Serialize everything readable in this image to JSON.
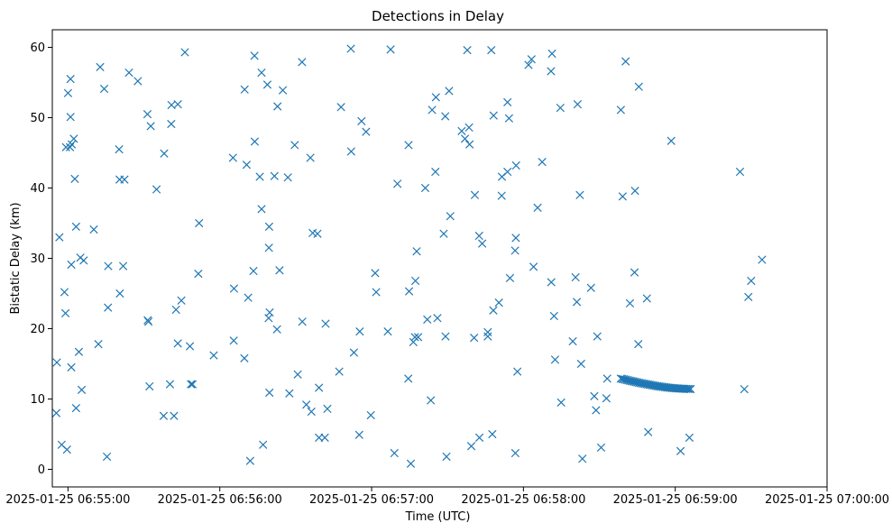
{
  "chart_data": {
    "type": "scatter",
    "title": "Detections in Delay",
    "xlabel": "Time (UTC)",
    "ylabel": "Bistatic Delay (km)",
    "x_unit": "seconds since 2025-01-25 06:55:00 UTC",
    "xlim": [
      -6.2,
      300
    ],
    "ylim": [
      -2.5,
      62.5
    ],
    "x_ticks": [
      {
        "value": 0,
        "label": "2025-01-25 06:55:00"
      },
      {
        "value": 60,
        "label": "2025-01-25 06:56:00"
      },
      {
        "value": 120,
        "label": "2025-01-25 06:57:00"
      },
      {
        "value": 180,
        "label": "2025-01-25 06:58:00"
      },
      {
        "value": 240,
        "label": "2025-01-25 06:59:00"
      },
      {
        "value": 300,
        "label": "2025-01-25 07:00:00"
      }
    ],
    "y_ticks": [
      {
        "value": 0,
        "label": "0"
      },
      {
        "value": 10,
        "label": "10"
      },
      {
        "value": 20,
        "label": "20"
      },
      {
        "value": 30,
        "label": "30"
      },
      {
        "value": 40,
        "label": "40"
      },
      {
        "value": 50,
        "label": "50"
      },
      {
        "value": 60,
        "label": "60"
      }
    ],
    "grid": false,
    "marker": "x",
    "colors": {
      "series": "#1f77b4"
    },
    "points": [
      [
        -4.4,
        15.2
      ],
      [
        -4.6,
        8.0
      ],
      [
        -3.4,
        33.0
      ],
      [
        -2.5,
        3.5
      ],
      [
        -1.4,
        25.2
      ],
      [
        -1.0,
        22.2
      ],
      [
        -0.8,
        45.8
      ],
      [
        -0.4,
        2.8
      ],
      [
        0.0,
        53.5
      ],
      [
        1.0,
        55.5
      ],
      [
        1.0,
        50.1
      ],
      [
        0.8,
        45.8
      ],
      [
        1.5,
        46.2
      ],
      [
        1.3,
        29.1
      ],
      [
        1.3,
        14.5
      ],
      [
        2.3,
        47.0
      ],
      [
        2.7,
        41.3
      ],
      [
        3.2,
        34.5
      ],
      [
        3.2,
        8.7
      ],
      [
        4.3,
        16.7
      ],
      [
        4.9,
        30.1
      ],
      [
        5.4,
        11.3
      ],
      [
        6.2,
        29.7
      ],
      [
        10.2,
        34.1
      ],
      [
        12.0,
        17.8
      ],
      [
        12.7,
        57.2
      ],
      [
        14.3,
        54.1
      ],
      [
        15.4,
        1.8
      ],
      [
        15.9,
        28.9
      ],
      [
        15.8,
        23.0
      ],
      [
        20.2,
        45.5
      ],
      [
        20.4,
        41.2
      ],
      [
        20.5,
        25.0
      ],
      [
        21.8,
        28.9
      ],
      [
        22.3,
        41.2
      ],
      [
        24.1,
        56.4
      ],
      [
        27.6,
        55.2
      ],
      [
        31.4,
        50.5
      ],
      [
        31.5,
        21.2
      ],
      [
        31.8,
        21.0
      ],
      [
        32.2,
        11.8
      ],
      [
        32.7,
        48.8
      ],
      [
        35.0,
        39.8
      ],
      [
        37.8,
        7.6
      ],
      [
        38.0,
        44.9
      ],
      [
        40.3,
        12.1
      ],
      [
        40.8,
        49.1
      ],
      [
        40.9,
        51.8
      ],
      [
        41.9,
        7.6
      ],
      [
        42.7,
        22.7
      ],
      [
        43.4,
        51.9
      ],
      [
        43.4,
        17.9
      ],
      [
        44.8,
        24.0
      ],
      [
        46.2,
        59.3
      ],
      [
        48.2,
        17.5
      ],
      [
        48.6,
        12.1
      ],
      [
        49.2,
        12.1
      ],
      [
        51.5,
        27.8
      ],
      [
        51.8,
        35.0
      ],
      [
        57.6,
        16.2
      ],
      [
        65.2,
        44.3
      ],
      [
        65.5,
        18.3
      ],
      [
        65.6,
        25.7
      ],
      [
        69.8,
        54.0
      ],
      [
        69.7,
        15.8
      ],
      [
        70.6,
        43.3
      ],
      [
        71.2,
        24.4
      ],
      [
        72.0,
        1.2
      ],
      [
        73.7,
        58.8
      ],
      [
        73.3,
        28.2
      ],
      [
        73.8,
        46.6
      ],
      [
        75.8,
        41.6
      ],
      [
        76.5,
        37.0
      ],
      [
        76.5,
        56.4
      ],
      [
        77.1,
        3.5
      ],
      [
        78.8,
        54.7
      ],
      [
        79.5,
        34.5
      ],
      [
        79.4,
        31.5
      ],
      [
        79.3,
        21.5
      ],
      [
        79.7,
        22.3
      ],
      [
        79.6,
        10.9
      ],
      [
        81.6,
        41.7
      ],
      [
        82.6,
        19.9
      ],
      [
        82.8,
        51.6
      ],
      [
        83.6,
        28.3
      ],
      [
        84.9,
        53.9
      ],
      [
        86.9,
        41.5
      ],
      [
        87.5,
        10.8
      ],
      [
        89.6,
        46.1
      ],
      [
        90.8,
        13.5
      ],
      [
        92.5,
        57.9
      ],
      [
        92.6,
        21.0
      ],
      [
        94.2,
        9.2
      ],
      [
        95.8,
        44.3
      ],
      [
        96.2,
        8.2
      ],
      [
        96.7,
        33.6
      ],
      [
        98.6,
        33.5
      ],
      [
        99.2,
        11.6
      ],
      [
        99.2,
        4.5
      ],
      [
        101.5,
        4.5
      ],
      [
        101.8,
        20.7
      ],
      [
        102.5,
        8.6
      ],
      [
        107.2,
        13.9
      ],
      [
        107.9,
        51.5
      ],
      [
        111.8,
        59.8
      ],
      [
        111.9,
        45.2
      ],
      [
        113.0,
        16.6
      ],
      [
        115.1,
        4.9
      ],
      [
        115.3,
        19.6
      ],
      [
        116.0,
        49.5
      ],
      [
        117.8,
        48.0
      ],
      [
        119.7,
        7.7
      ],
      [
        121.4,
        27.9
      ],
      [
        121.8,
        25.2
      ],
      [
        126.4,
        19.6
      ],
      [
        127.5,
        59.7
      ],
      [
        129.0,
        2.3
      ],
      [
        130.2,
        40.6
      ],
      [
        134.5,
        12.9
      ],
      [
        134.6,
        46.1
      ],
      [
        134.8,
        25.3
      ],
      [
        135.5,
        0.8
      ],
      [
        136.5,
        18.1
      ],
      [
        137.3,
        26.8
      ],
      [
        137.1,
        18.8
      ],
      [
        137.8,
        31.0
      ],
      [
        138.4,
        18.8
      ],
      [
        141.2,
        40.0
      ],
      [
        142.0,
        21.3
      ],
      [
        143.4,
        9.8
      ],
      [
        143.9,
        51.1
      ],
      [
        145.2,
        42.3
      ],
      [
        145.4,
        52.9
      ],
      [
        146.0,
        21.5
      ],
      [
        148.5,
        33.5
      ],
      [
        149.1,
        50.2
      ],
      [
        149.2,
        18.9
      ],
      [
        149.6,
        1.8
      ],
      [
        150.6,
        53.8
      ],
      [
        151.1,
        36.0
      ],
      [
        155.6,
        48.1
      ],
      [
        156.9,
        47.0
      ],
      [
        157.8,
        59.6
      ],
      [
        158.5,
        48.6
      ],
      [
        158.7,
        46.2
      ],
      [
        159.4,
        3.3
      ],
      [
        160.5,
        18.7
      ],
      [
        160.8,
        39.0
      ],
      [
        162.5,
        33.2
      ],
      [
        162.6,
        4.5
      ],
      [
        163.7,
        32.1
      ],
      [
        165.9,
        19.5
      ],
      [
        165.9,
        18.9
      ],
      [
        167.3,
        59.6
      ],
      [
        167.7,
        5.0
      ],
      [
        168.2,
        50.3
      ],
      [
        168.1,
        22.6
      ],
      [
        170.3,
        23.7
      ],
      [
        171.4,
        38.9
      ],
      [
        171.5,
        41.6
      ],
      [
        173.7,
        52.2
      ],
      [
        173.7,
        42.3
      ],
      [
        174.3,
        49.9
      ],
      [
        174.7,
        27.2
      ],
      [
        176.7,
        31.1
      ],
      [
        177.0,
        32.9
      ],
      [
        177.1,
        43.2
      ],
      [
        176.8,
        2.3
      ],
      [
        177.6,
        13.9
      ],
      [
        182.0,
        57.5
      ],
      [
        183.2,
        58.3
      ],
      [
        184.0,
        28.8
      ],
      [
        185.6,
        37.2
      ],
      [
        187.4,
        43.7
      ],
      [
        190.9,
        56.6
      ],
      [
        191.3,
        59.1
      ],
      [
        191.0,
        26.6
      ],
      [
        192.1,
        21.8
      ],
      [
        192.5,
        15.6
      ],
      [
        194.6,
        51.4
      ],
      [
        194.9,
        9.5
      ],
      [
        199.5,
        18.2
      ],
      [
        200.6,
        27.3
      ],
      [
        201.1,
        23.8
      ],
      [
        201.4,
        51.9
      ],
      [
        202.3,
        39.0
      ],
      [
        202.8,
        15.0
      ],
      [
        203.3,
        1.5
      ],
      [
        206.7,
        25.8
      ],
      [
        208.0,
        10.4
      ],
      [
        208.7,
        8.4
      ],
      [
        209.2,
        18.9
      ],
      [
        210.7,
        3.1
      ],
      [
        212.8,
        10.1
      ],
      [
        213.1,
        12.9
      ],
      [
        218.5,
        51.1
      ],
      [
        219.2,
        38.8
      ],
      [
        220.4,
        58.0
      ],
      [
        222.1,
        23.6
      ],
      [
        223.9,
        28.0
      ],
      [
        224.1,
        39.6
      ],
      [
        225.6,
        54.4
      ],
      [
        225.4,
        17.8
      ],
      [
        228.8,
        24.3
      ],
      [
        229.3,
        5.3
      ],
      [
        238.4,
        46.7
      ],
      [
        242.1,
        2.6
      ],
      [
        245.6,
        4.5
      ],
      [
        265.6,
        42.3
      ],
      [
        267.3,
        11.4
      ],
      [
        268.9,
        24.5
      ],
      [
        270.0,
        26.8
      ],
      [
        274.3,
        29.8
      ],
      [
        218.5,
        12.9
      ],
      [
        219.1,
        12.85
      ],
      [
        219.7,
        12.8
      ],
      [
        220.3,
        12.75
      ],
      [
        220.9,
        12.7
      ],
      [
        221.5,
        12.65
      ],
      [
        222.1,
        12.6
      ],
      [
        222.7,
        12.55
      ],
      [
        223.3,
        12.5
      ],
      [
        223.9,
        12.45
      ],
      [
        224.5,
        12.4
      ],
      [
        225.1,
        12.35
      ],
      [
        225.7,
        12.3
      ],
      [
        226.3,
        12.26
      ],
      [
        226.9,
        12.22
      ],
      [
        227.5,
        12.18
      ],
      [
        228.1,
        12.14
      ],
      [
        228.7,
        12.1
      ],
      [
        229.3,
        12.06
      ],
      [
        229.9,
        12.02
      ],
      [
        230.5,
        11.98
      ],
      [
        231.1,
        11.94
      ],
      [
        231.7,
        11.9
      ],
      [
        232.3,
        11.86
      ],
      [
        232.9,
        11.83
      ],
      [
        233.5,
        11.8
      ],
      [
        234.1,
        11.77
      ],
      [
        234.7,
        11.74
      ],
      [
        235.3,
        11.71
      ],
      [
        235.9,
        11.68
      ],
      [
        236.5,
        11.65
      ],
      [
        237.1,
        11.62
      ],
      [
        237.7,
        11.6
      ],
      [
        238.3,
        11.58
      ],
      [
        238.9,
        11.56
      ],
      [
        239.5,
        11.54
      ],
      [
        240.1,
        11.52
      ],
      [
        240.7,
        11.5
      ],
      [
        241.3,
        11.49
      ],
      [
        241.9,
        11.48
      ],
      [
        242.5,
        11.47
      ],
      [
        243.1,
        11.46
      ],
      [
        243.7,
        11.45
      ],
      [
        244.3,
        11.44
      ],
      [
        244.9,
        11.43
      ],
      [
        245.5,
        11.42
      ],
      [
        246.1,
        11.41
      ]
    ]
  }
}
